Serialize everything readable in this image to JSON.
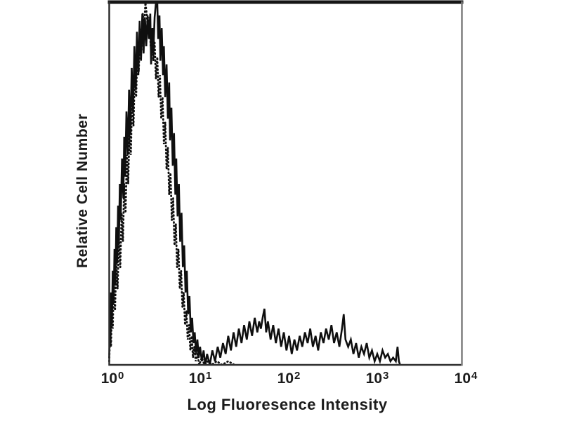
{
  "figure": {
    "background_color": "#ffffff",
    "frame_color": "#2e2e2e",
    "frame_top_color": "#151515",
    "frame_right_color": "#7d7d7d",
    "trace_color": "#0f0f0f"
  },
  "chart_data": {
    "type": "line",
    "subtype": "flow-cytometry-histogram",
    "title": "",
    "xlabel": "Log Fluoresence Intensity",
    "ylabel": "Relative Cell Number",
    "x_scale": "log10",
    "x_range": [
      1,
      10000
    ],
    "x_tick_values": [
      1,
      10,
      100,
      1000,
      10000
    ],
    "x_ticks": [
      {
        "base": "10",
        "exp": "0"
      },
      {
        "base": "10",
        "exp": "1"
      },
      {
        "base": "10",
        "exp": "2"
      },
      {
        "base": "10",
        "exp": "3"
      },
      {
        "base": "10",
        "exp": "4"
      }
    ],
    "y_ticks": [],
    "grid": false,
    "legend": "none",
    "point_format": "[log10(x), relative_height 0..1, clipped at plot top]",
    "series": [
      {
        "name": "dotted-trace",
        "style": "dotted",
        "points": [
          [
            0.0,
            0.01
          ],
          [
            0.01,
            0.1
          ],
          [
            0.02,
            0.05
          ],
          [
            0.03,
            0.16
          ],
          [
            0.04,
            0.1
          ],
          [
            0.05,
            0.22
          ],
          [
            0.065,
            0.15
          ],
          [
            0.08,
            0.28
          ],
          [
            0.095,
            0.21
          ],
          [
            0.11,
            0.35
          ],
          [
            0.125,
            0.27
          ],
          [
            0.14,
            0.42
          ],
          [
            0.155,
            0.34
          ],
          [
            0.17,
            0.5
          ],
          [
            0.185,
            0.42
          ],
          [
            0.2,
            0.58
          ],
          [
            0.215,
            0.5
          ],
          [
            0.23,
            0.66
          ],
          [
            0.245,
            0.58
          ],
          [
            0.26,
            0.74
          ],
          [
            0.275,
            0.66
          ],
          [
            0.29,
            0.81
          ],
          [
            0.305,
            0.74
          ],
          [
            0.32,
            0.88
          ],
          [
            0.335,
            0.81
          ],
          [
            0.35,
            0.93
          ],
          [
            0.365,
            0.87
          ],
          [
            0.38,
            0.97
          ],
          [
            0.395,
            0.93
          ],
          [
            0.41,
            1.0
          ],
          [
            0.425,
            0.97
          ],
          [
            0.44,
            0.92
          ],
          [
            0.455,
            0.96
          ],
          [
            0.47,
            0.88
          ],
          [
            0.485,
            0.93
          ],
          [
            0.5,
            0.84
          ],
          [
            0.515,
            0.89
          ],
          [
            0.53,
            0.79
          ],
          [
            0.545,
            0.85
          ],
          [
            0.56,
            0.74
          ],
          [
            0.575,
            0.8
          ],
          [
            0.59,
            0.68
          ],
          [
            0.605,
            0.74
          ],
          [
            0.62,
            0.61
          ],
          [
            0.635,
            0.67
          ],
          [
            0.65,
            0.54
          ],
          [
            0.665,
            0.6
          ],
          [
            0.68,
            0.47
          ],
          [
            0.695,
            0.53
          ],
          [
            0.71,
            0.4
          ],
          [
            0.725,
            0.46
          ],
          [
            0.74,
            0.33
          ],
          [
            0.755,
            0.39
          ],
          [
            0.77,
            0.27
          ],
          [
            0.785,
            0.32
          ],
          [
            0.8,
            0.21
          ],
          [
            0.815,
            0.26
          ],
          [
            0.83,
            0.16
          ],
          [
            0.845,
            0.2
          ],
          [
            0.86,
            0.11
          ],
          [
            0.875,
            0.15
          ],
          [
            0.89,
            0.07
          ],
          [
            0.905,
            0.11
          ],
          [
            0.92,
            0.04
          ],
          [
            0.935,
            0.08
          ],
          [
            0.95,
            0.02
          ],
          [
            0.965,
            0.05
          ],
          [
            0.98,
            0.01
          ],
          [
            1.0,
            0.03
          ],
          [
            1.02,
            0.0
          ],
          [
            1.05,
            0.02
          ],
          [
            1.08,
            0.0
          ],
          [
            1.12,
            0.01
          ],
          [
            1.16,
            0.0
          ],
          [
            1.22,
            0.01
          ],
          [
            1.28,
            0.0
          ],
          [
            1.35,
            0.01
          ],
          [
            1.42,
            0.0
          ]
        ]
      },
      {
        "name": "solid-trace",
        "style": "solid",
        "points": [
          [
            0.0,
            0.02
          ],
          [
            0.01,
            0.14
          ],
          [
            0.015,
            0.08
          ],
          [
            0.02,
            0.2
          ],
          [
            0.03,
            0.12
          ],
          [
            0.04,
            0.26
          ],
          [
            0.05,
            0.17
          ],
          [
            0.06,
            0.32
          ],
          [
            0.07,
            0.22
          ],
          [
            0.08,
            0.38
          ],
          [
            0.09,
            0.28
          ],
          [
            0.1,
            0.44
          ],
          [
            0.11,
            0.34
          ],
          [
            0.12,
            0.5
          ],
          [
            0.13,
            0.4
          ],
          [
            0.145,
            0.57
          ],
          [
            0.16,
            0.46
          ],
          [
            0.17,
            0.63
          ],
          [
            0.18,
            0.52
          ],
          [
            0.195,
            0.7
          ],
          [
            0.21,
            0.58
          ],
          [
            0.225,
            0.76
          ],
          [
            0.24,
            0.64
          ],
          [
            0.255,
            0.82
          ],
          [
            0.27,
            0.7
          ],
          [
            0.285,
            0.88
          ],
          [
            0.3,
            0.76
          ],
          [
            0.315,
            0.92
          ],
          [
            0.33,
            0.8
          ],
          [
            0.345,
            0.95
          ],
          [
            0.36,
            0.84
          ],
          [
            0.375,
            0.97
          ],
          [
            0.39,
            0.86
          ],
          [
            0.405,
            0.96
          ],
          [
            0.42,
            0.88
          ],
          [
            0.435,
            0.965
          ],
          [
            0.45,
            0.9
          ],
          [
            0.465,
            0.97
          ],
          [
            0.475,
            0.83
          ],
          [
            0.49,
            0.93
          ],
          [
            0.5,
            0.86
          ],
          [
            0.515,
            0.96
          ],
          [
            0.53,
            1.0
          ],
          [
            0.545,
            1.0
          ],
          [
            0.555,
            0.9
          ],
          [
            0.57,
            0.965
          ],
          [
            0.58,
            0.84
          ],
          [
            0.595,
            0.93
          ],
          [
            0.61,
            0.8
          ],
          [
            0.62,
            0.88
          ],
          [
            0.635,
            0.74
          ],
          [
            0.65,
            0.83
          ],
          [
            0.665,
            0.68
          ],
          [
            0.68,
            0.78
          ],
          [
            0.69,
            0.62
          ],
          [
            0.705,
            0.71
          ],
          [
            0.72,
            0.55
          ],
          [
            0.735,
            0.64
          ],
          [
            0.75,
            0.47
          ],
          [
            0.76,
            0.57
          ],
          [
            0.775,
            0.41
          ],
          [
            0.79,
            0.5
          ],
          [
            0.805,
            0.34
          ],
          [
            0.82,
            0.42
          ],
          [
            0.835,
            0.27
          ],
          [
            0.85,
            0.33
          ],
          [
            0.865,
            0.2
          ],
          [
            0.88,
            0.26
          ],
          [
            0.895,
            0.14
          ],
          [
            0.91,
            0.19
          ],
          [
            0.925,
            0.09
          ],
          [
            0.94,
            0.13
          ],
          [
            0.955,
            0.06
          ],
          [
            0.97,
            0.09
          ],
          [
            0.985,
            0.03
          ],
          [
            1.0,
            0.07
          ],
          [
            1.015,
            0.02
          ],
          [
            1.03,
            0.05
          ],
          [
            1.05,
            0.01
          ],
          [
            1.07,
            0.04
          ],
          [
            1.09,
            0.0
          ],
          [
            1.11,
            0.03
          ],
          [
            1.14,
            0.0
          ],
          [
            1.17,
            0.04
          ],
          [
            1.2,
            0.01
          ],
          [
            1.23,
            0.05
          ],
          [
            1.26,
            0.02
          ],
          [
            1.29,
            0.06
          ],
          [
            1.32,
            0.03
          ],
          [
            1.35,
            0.08
          ],
          [
            1.38,
            0.04
          ],
          [
            1.41,
            0.09
          ],
          [
            1.44,
            0.05
          ],
          [
            1.47,
            0.1
          ],
          [
            1.5,
            0.06
          ],
          [
            1.53,
            0.11
          ],
          [
            1.56,
            0.07
          ],
          [
            1.59,
            0.12
          ],
          [
            1.62,
            0.08
          ],
          [
            1.65,
            0.13
          ],
          [
            1.68,
            0.09
          ],
          [
            1.7,
            0.12
          ],
          [
            1.72,
            0.1
          ],
          [
            1.74,
            0.13
          ],
          [
            1.76,
            0.155
          ],
          [
            1.78,
            0.09
          ],
          [
            1.8,
            0.12
          ],
          [
            1.83,
            0.07
          ],
          [
            1.86,
            0.11
          ],
          [
            1.89,
            0.06
          ],
          [
            1.92,
            0.1
          ],
          [
            1.95,
            0.05
          ],
          [
            1.98,
            0.09
          ],
          [
            2.01,
            0.04
          ],
          [
            2.04,
            0.08
          ],
          [
            2.07,
            0.03
          ],
          [
            2.1,
            0.07
          ],
          [
            2.13,
            0.04
          ],
          [
            2.16,
            0.08
          ],
          [
            2.19,
            0.05
          ],
          [
            2.22,
            0.09
          ],
          [
            2.25,
            0.06
          ],
          [
            2.28,
            0.1
          ],
          [
            2.31,
            0.05
          ],
          [
            2.34,
            0.08
          ],
          [
            2.37,
            0.04
          ],
          [
            2.4,
            0.09
          ],
          [
            2.43,
            0.06
          ],
          [
            2.46,
            0.1
          ],
          [
            2.49,
            0.07
          ],
          [
            2.52,
            0.11
          ],
          [
            2.55,
            0.06
          ],
          [
            2.58,
            0.09
          ],
          [
            2.61,
            0.05
          ],
          [
            2.64,
            0.1
          ],
          [
            2.66,
            0.14
          ],
          [
            2.68,
            0.07
          ],
          [
            2.71,
            0.05
          ],
          [
            2.74,
            0.07
          ],
          [
            2.77,
            0.03
          ],
          [
            2.8,
            0.06
          ],
          [
            2.83,
            0.02
          ],
          [
            2.86,
            0.05
          ],
          [
            2.89,
            0.03
          ],
          [
            2.92,
            0.06
          ],
          [
            2.95,
            0.02
          ],
          [
            2.98,
            0.04
          ],
          [
            3.01,
            0.01
          ],
          [
            3.04,
            0.03
          ],
          [
            3.07,
            0.01
          ],
          [
            3.1,
            0.04
          ],
          [
            3.13,
            0.02
          ],
          [
            3.16,
            0.03
          ],
          [
            3.19,
            0.01
          ],
          [
            3.22,
            0.02
          ],
          [
            3.25,
            0.01
          ],
          [
            3.27,
            0.05
          ],
          [
            3.285,
            0.01
          ],
          [
            3.3,
            0.0
          ]
        ]
      }
    ]
  }
}
